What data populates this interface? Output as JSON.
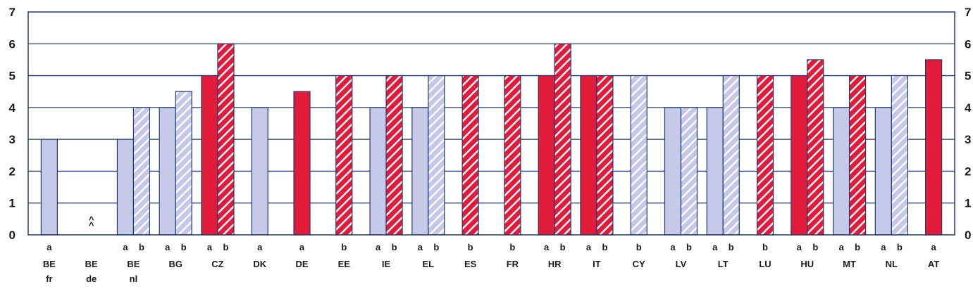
{
  "chart_data": {
    "type": "bar",
    "title": "",
    "xlabel": "",
    "ylabel": "",
    "ylim": [
      0,
      7
    ],
    "yticks": [
      0,
      1,
      2,
      3,
      4,
      5,
      6,
      7
    ],
    "grid": true,
    "colors": {
      "compulsory": "#e31b3b",
      "not_compulsory": "#c5c8e6",
      "hatch": "#ffffff",
      "axis": "#1f3b73"
    },
    "groups": [
      {
        "name": "BE",
        "sub": "fr",
        "bars": [
          {
            "label": "a",
            "value": 3,
            "color": "not_compulsory",
            "hatched": false
          }
        ]
      },
      {
        "name": "BE",
        "sub": "de",
        "bars": [
          {
            "label": "",
            "value": 0,
            "color": "not_compulsory",
            "hatched": false,
            "marker": "^\n^"
          }
        ]
      },
      {
        "name": "BE",
        "sub": "nl",
        "bars": [
          {
            "label": "a",
            "value": 3,
            "color": "not_compulsory",
            "hatched": false
          },
          {
            "label": "b",
            "value": 4,
            "color": "not_compulsory",
            "hatched": true
          }
        ]
      },
      {
        "name": "BG",
        "sub": "",
        "bars": [
          {
            "label": "a",
            "value": 4,
            "color": "not_compulsory",
            "hatched": false
          },
          {
            "label": "b",
            "value": 4.5,
            "color": "not_compulsory",
            "hatched": true
          }
        ]
      },
      {
        "name": "CZ",
        "sub": "",
        "bars": [
          {
            "label": "a",
            "value": 5,
            "color": "compulsory",
            "hatched": false
          },
          {
            "label": "b",
            "value": 6,
            "color": "compulsory",
            "hatched": true
          }
        ]
      },
      {
        "name": "DK",
        "sub": "",
        "bars": [
          {
            "label": "a",
            "value": 4,
            "color": "not_compulsory",
            "hatched": false
          }
        ]
      },
      {
        "name": "DE",
        "sub": "",
        "bars": [
          {
            "label": "a",
            "value": 4.5,
            "color": "compulsory",
            "hatched": false
          }
        ]
      },
      {
        "name": "EE",
        "sub": "",
        "bars": [
          {
            "label": "b",
            "value": 5,
            "color": "compulsory",
            "hatched": true
          }
        ]
      },
      {
        "name": "IE",
        "sub": "",
        "bars": [
          {
            "label": "a",
            "value": 4,
            "color": "not_compulsory",
            "hatched": false
          },
          {
            "label": "b",
            "value": 5,
            "color": "compulsory",
            "hatched": true
          }
        ]
      },
      {
        "name": "EL",
        "sub": "",
        "bars": [
          {
            "label": "a",
            "value": 4,
            "color": "not_compulsory",
            "hatched": false
          },
          {
            "label": "b",
            "value": 5,
            "color": "not_compulsory",
            "hatched": true
          }
        ]
      },
      {
        "name": "ES",
        "sub": "",
        "bars": [
          {
            "label": "b",
            "value": 5,
            "color": "compulsory",
            "hatched": true
          }
        ]
      },
      {
        "name": "FR",
        "sub": "",
        "bars": [
          {
            "label": "b",
            "value": 5,
            "color": "compulsory",
            "hatched": true
          }
        ]
      },
      {
        "name": "HR",
        "sub": "",
        "bars": [
          {
            "label": "a",
            "value": 5,
            "color": "compulsory",
            "hatched": false
          },
          {
            "label": "b",
            "value": 6,
            "color": "compulsory",
            "hatched": true
          }
        ]
      },
      {
        "name": "IT",
        "sub": "",
        "bars": [
          {
            "label": "a",
            "value": 5,
            "color": "compulsory",
            "hatched": false
          },
          {
            "label": "b",
            "value": 5,
            "color": "compulsory",
            "hatched": true
          }
        ]
      },
      {
        "name": "CY",
        "sub": "",
        "bars": [
          {
            "label": "b",
            "value": 5,
            "color": "not_compulsory",
            "hatched": true
          }
        ]
      },
      {
        "name": "LV",
        "sub": "",
        "bars": [
          {
            "label": "a",
            "value": 4,
            "color": "not_compulsory",
            "hatched": false
          },
          {
            "label": "b",
            "value": 4,
            "color": "not_compulsory",
            "hatched": true
          }
        ]
      },
      {
        "name": "LT",
        "sub": "",
        "bars": [
          {
            "label": "a",
            "value": 4,
            "color": "not_compulsory",
            "hatched": false
          },
          {
            "label": "b",
            "value": 5,
            "color": "not_compulsory",
            "hatched": true
          }
        ]
      },
      {
        "name": "LU",
        "sub": "",
        "bars": [
          {
            "label": "b",
            "value": 5,
            "color": "compulsory",
            "hatched": true
          }
        ]
      },
      {
        "name": "HU",
        "sub": "",
        "bars": [
          {
            "label": "a",
            "value": 5,
            "color": "compulsory",
            "hatched": false
          },
          {
            "label": "b",
            "value": 5.5,
            "color": "compulsory",
            "hatched": true
          }
        ]
      },
      {
        "name": "MT",
        "sub": "",
        "bars": [
          {
            "label": "a",
            "value": 4,
            "color": "not_compulsory",
            "hatched": false
          },
          {
            "label": "b",
            "value": 5,
            "color": "compulsory",
            "hatched": true
          }
        ]
      },
      {
        "name": "NL",
        "sub": "",
        "bars": [
          {
            "label": "a",
            "value": 4,
            "color": "not_compulsory",
            "hatched": false
          },
          {
            "label": "b",
            "value": 5,
            "color": "not_compulsory",
            "hatched": true
          }
        ]
      },
      {
        "name": "AT",
        "sub": "",
        "bars": [
          {
            "label": "a",
            "value": 5.5,
            "color": "compulsory",
            "hatched": false
          }
        ]
      }
    ]
  }
}
